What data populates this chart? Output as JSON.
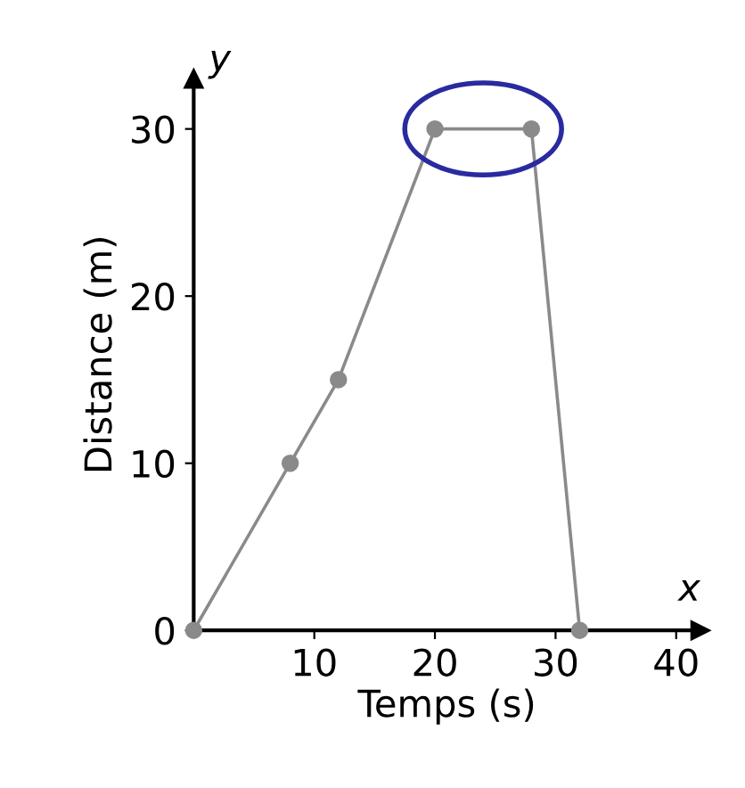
{
  "chart_data": {
    "type": "line",
    "xlabel": "Temps (s)",
    "ylabel": "Distance (m)",
    "x": [
      0,
      8,
      12,
      20,
      28,
      32
    ],
    "values": [
      0,
      10,
      15,
      30,
      30,
      0
    ],
    "color": "#8a8a8a",
    "marker": "circle",
    "line_style": "solid",
    "grid": false,
    "xlim": [
      0,
      42
    ],
    "ylim": [
      0,
      33
    ],
    "xticks": [
      10,
      20,
      30,
      40
    ],
    "yticks": [
      0,
      10,
      20,
      30
    ],
    "annotations": [
      "x",
      "y"
    ]
  }
}
